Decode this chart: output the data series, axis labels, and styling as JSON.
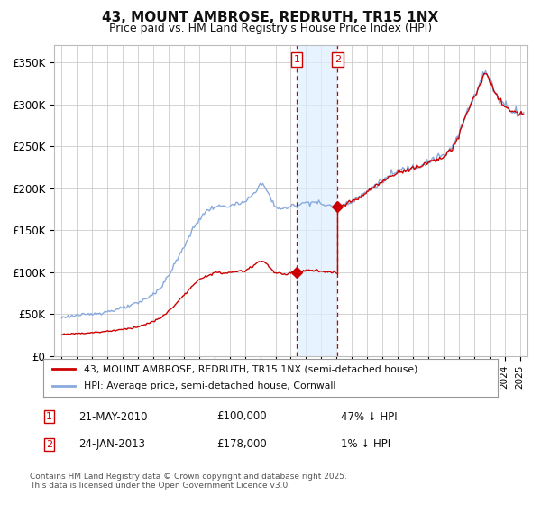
{
  "title": "43, MOUNT AMBROSE, REDRUTH, TR15 1NX",
  "subtitle": "Price paid vs. HM Land Registry's House Price Index (HPI)",
  "footer": "Contains HM Land Registry data © Crown copyright and database right 2025.\nThis data is licensed under the Open Government Licence v3.0.",
  "legend_line1": "43, MOUNT AMBROSE, REDRUTH, TR15 1NX (semi-detached house)",
  "legend_line2": "HPI: Average price, semi-detached house, Cornwall",
  "transaction1_date": "21-MAY-2010",
  "transaction1_price": "£100,000",
  "transaction1_hpi": "47% ↓ HPI",
  "transaction2_date": "24-JAN-2013",
  "transaction2_price": "£178,000",
  "transaction2_hpi": "1% ↓ HPI",
  "transaction1_x": 2010.38,
  "transaction1_y": 100000,
  "transaction2_x": 2013.07,
  "transaction2_y": 178000,
  "vline1_x": 2010.38,
  "vline2_x": 2013.07,
  "shade_xmin": 2010.38,
  "shade_xmax": 2013.07,
  "xlim": [
    1994.5,
    2025.5
  ],
  "ylim": [
    0,
    370000
  ],
  "yticks": [
    0,
    50000,
    100000,
    150000,
    200000,
    250000,
    300000,
    350000
  ],
  "ytick_labels": [
    "£0",
    "£50K",
    "£100K",
    "£150K",
    "£200K",
    "£250K",
    "£300K",
    "£350K"
  ],
  "property_color": "#cc0000",
  "hpi_color": "#88aadd",
  "background_color": "#ffffff",
  "grid_color": "#cccccc",
  "shade_color": "#ddeeff",
  "vline_color": "#cc0000",
  "title_fontsize": 11,
  "subtitle_fontsize": 9
}
